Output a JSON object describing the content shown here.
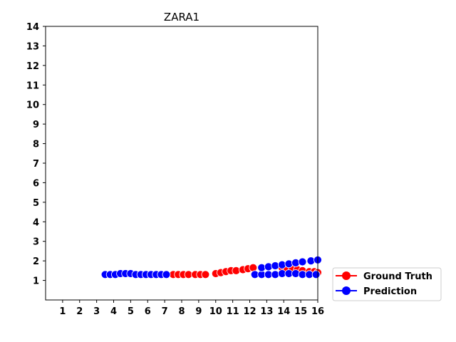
{
  "chart_data": {
    "type": "scatter",
    "title": "ZARA1",
    "xlabel": "",
    "ylabel": "",
    "xlim": [
      0,
      16
    ],
    "ylim": [
      0,
      14
    ],
    "xticks": [
      "1",
      "2",
      "3",
      "4",
      "5",
      "6",
      "7",
      "8",
      "9",
      "10",
      "11",
      "12",
      "13",
      "14",
      "15",
      "16"
    ],
    "yticks": [
      "1",
      "2",
      "3",
      "4",
      "5",
      "6",
      "7",
      "8",
      "9",
      "10",
      "11",
      "12",
      "13",
      "14"
    ],
    "grid": false,
    "legend_position": "outside-lower-right",
    "series": [
      {
        "name": "Ground Truth",
        "color": "#ff0000",
        "points": [
          [
            7.1,
            1.3
          ],
          [
            7.5,
            1.3
          ],
          [
            7.8,
            1.3
          ],
          [
            8.1,
            1.3
          ],
          [
            8.4,
            1.3
          ],
          [
            8.8,
            1.3
          ],
          [
            9.1,
            1.3
          ],
          [
            9.4,
            1.3
          ],
          [
            10.0,
            1.35
          ],
          [
            10.3,
            1.4
          ],
          [
            10.6,
            1.45
          ],
          [
            10.9,
            1.5
          ],
          [
            11.2,
            1.5
          ],
          [
            11.6,
            1.55
          ],
          [
            11.9,
            1.6
          ],
          [
            12.2,
            1.65
          ],
          [
            13.9,
            1.65
          ],
          [
            14.2,
            1.6
          ],
          [
            14.5,
            1.55
          ],
          [
            14.8,
            1.55
          ],
          [
            15.1,
            1.5
          ],
          [
            15.5,
            1.45
          ],
          [
            15.8,
            1.45
          ],
          [
            16.0,
            1.4
          ]
        ]
      },
      {
        "name": "Prediction",
        "color": "#0000ff",
        "points": [
          [
            3.5,
            1.3
          ],
          [
            3.8,
            1.3
          ],
          [
            4.1,
            1.3
          ],
          [
            4.4,
            1.35
          ],
          [
            4.7,
            1.35
          ],
          [
            5.0,
            1.35
          ],
          [
            5.3,
            1.3
          ],
          [
            5.6,
            1.3
          ],
          [
            5.9,
            1.3
          ],
          [
            6.2,
            1.3
          ],
          [
            6.5,
            1.3
          ],
          [
            6.8,
            1.3
          ],
          [
            7.1,
            1.3
          ],
          [
            12.3,
            1.3
          ],
          [
            12.7,
            1.3
          ],
          [
            13.1,
            1.3
          ],
          [
            13.5,
            1.3
          ],
          [
            13.9,
            1.35
          ],
          [
            14.3,
            1.35
          ],
          [
            14.7,
            1.35
          ],
          [
            15.1,
            1.3
          ],
          [
            15.5,
            1.3
          ],
          [
            15.9,
            1.3
          ],
          [
            12.7,
            1.65
          ],
          [
            13.1,
            1.7
          ],
          [
            13.5,
            1.75
          ],
          [
            13.9,
            1.8
          ],
          [
            14.3,
            1.85
          ],
          [
            14.7,
            1.9
          ],
          [
            15.1,
            1.95
          ],
          [
            15.6,
            2.0
          ],
          [
            16.0,
            2.05
          ]
        ]
      }
    ]
  }
}
